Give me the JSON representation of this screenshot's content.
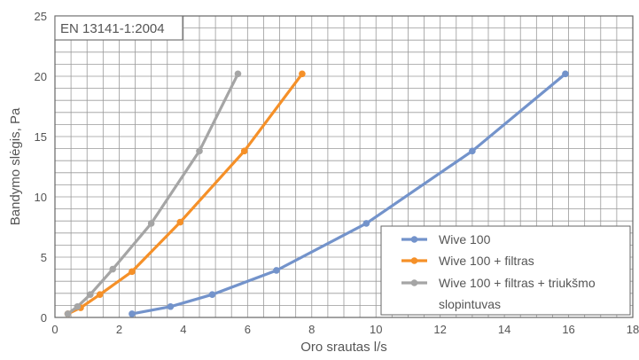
{
  "chart_data": {
    "type": "line",
    "annotation": "EN 13141-1:2004",
    "xlabel": "Oro srautas l/s",
    "ylabel": "Bandymo slėgis, Pa",
    "xlim": [
      0,
      18
    ],
    "ylim": [
      0,
      25
    ],
    "xticks": [
      0,
      2,
      4,
      6,
      8,
      10,
      12,
      14,
      16,
      18
    ],
    "yticks": [
      0,
      5,
      10,
      15,
      20,
      25
    ],
    "grid": true,
    "grid_minor_step_x": 0.5,
    "grid_minor_step_y": 1,
    "legend_position": "bottom-right",
    "series": [
      {
        "name": "Wive 100",
        "color": "#7393cb",
        "x": [
          2.4,
          3.6,
          4.9,
          6.9,
          9.7,
          13.0,
          15.9
        ],
        "y": [
          0.3,
          0.9,
          1.9,
          3.9,
          7.8,
          13.8,
          20.2
        ]
      },
      {
        "name": "Wive 100 + filtras",
        "color": "#f59028",
        "x": [
          0.4,
          0.8,
          1.4,
          2.4,
          3.9,
          5.9,
          7.7
        ],
        "y": [
          0.3,
          0.8,
          1.9,
          3.8,
          7.9,
          13.8,
          20.2
        ]
      },
      {
        "name": "Wive 100 + filtras + triukšmo slopintuvas",
        "color": "#a5a5a5",
        "x": [
          0.4,
          0.7,
          1.1,
          1.8,
          3.0,
          4.5,
          5.7
        ],
        "y": [
          0.3,
          0.9,
          1.9,
          4.0,
          7.8,
          13.8,
          20.2
        ]
      }
    ]
  }
}
